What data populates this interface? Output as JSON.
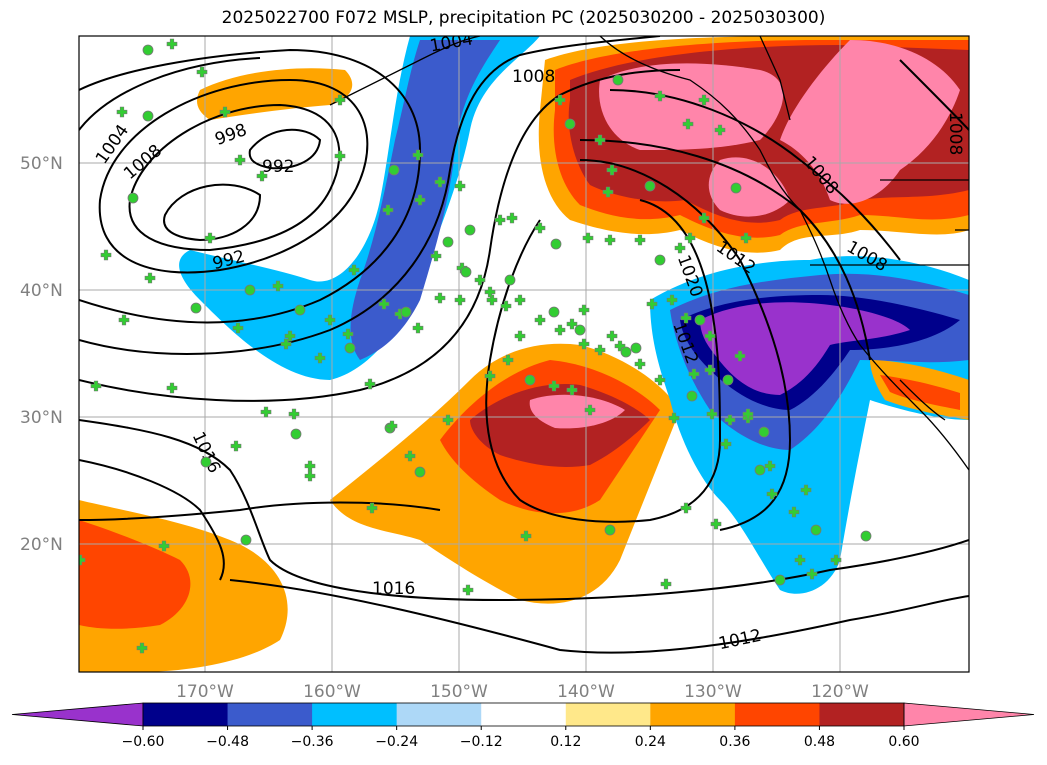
{
  "title": "2025022700 F072 MSLP, precipitation PC (2025030200 - 2025030300)",
  "map": {
    "lat_ticks": [
      "50°N",
      "40°N",
      "30°N",
      "20°N"
    ],
    "lon_ticks": [
      "170°W",
      "160°W",
      "150°W",
      "140°W",
      "130°W",
      "120°W"
    ],
    "contour_labels": [
      "1004",
      "1008",
      "998",
      "992",
      "992",
      "1008",
      "1016",
      "1016",
      "1012",
      "1020",
      "1012",
      "1008",
      "1008",
      "1008",
      "1004",
      "1012"
    ],
    "precip_shading": {
      "colors": {
        "lt_-0.60": "#9932cc",
        "-0.60_-0.48": "#00008b",
        "-0.48_-0.36": "#3b5bcc",
        "-0.36_-0.24": "#00bfff",
        "-0.24_-0.12": "#add8f7",
        "-0.12_0.12": "#ffffff",
        "0.12_0.24": "#ffe88a",
        "0.24_0.36": "#ffa500",
        "0.36_0.48": "#ff4500",
        "0.48_0.60": "#b22222",
        "gt_0.60": "#ff85aa"
      }
    },
    "station_marker_color": "#32cd32"
  },
  "colorbar": {
    "labels": [
      "−0.60",
      "−0.48",
      "−0.36",
      "−0.24",
      "−0.12",
      "0.12",
      "0.24",
      "0.36",
      "0.48",
      "0.60"
    ],
    "colors": [
      "#9932cc",
      "#00008b",
      "#3b5bcc",
      "#00bfff",
      "#add8f7",
      "#ffffff",
      "#ffe88a",
      "#ffa500",
      "#ff4500",
      "#b22222",
      "#ff85aa"
    ]
  }
}
